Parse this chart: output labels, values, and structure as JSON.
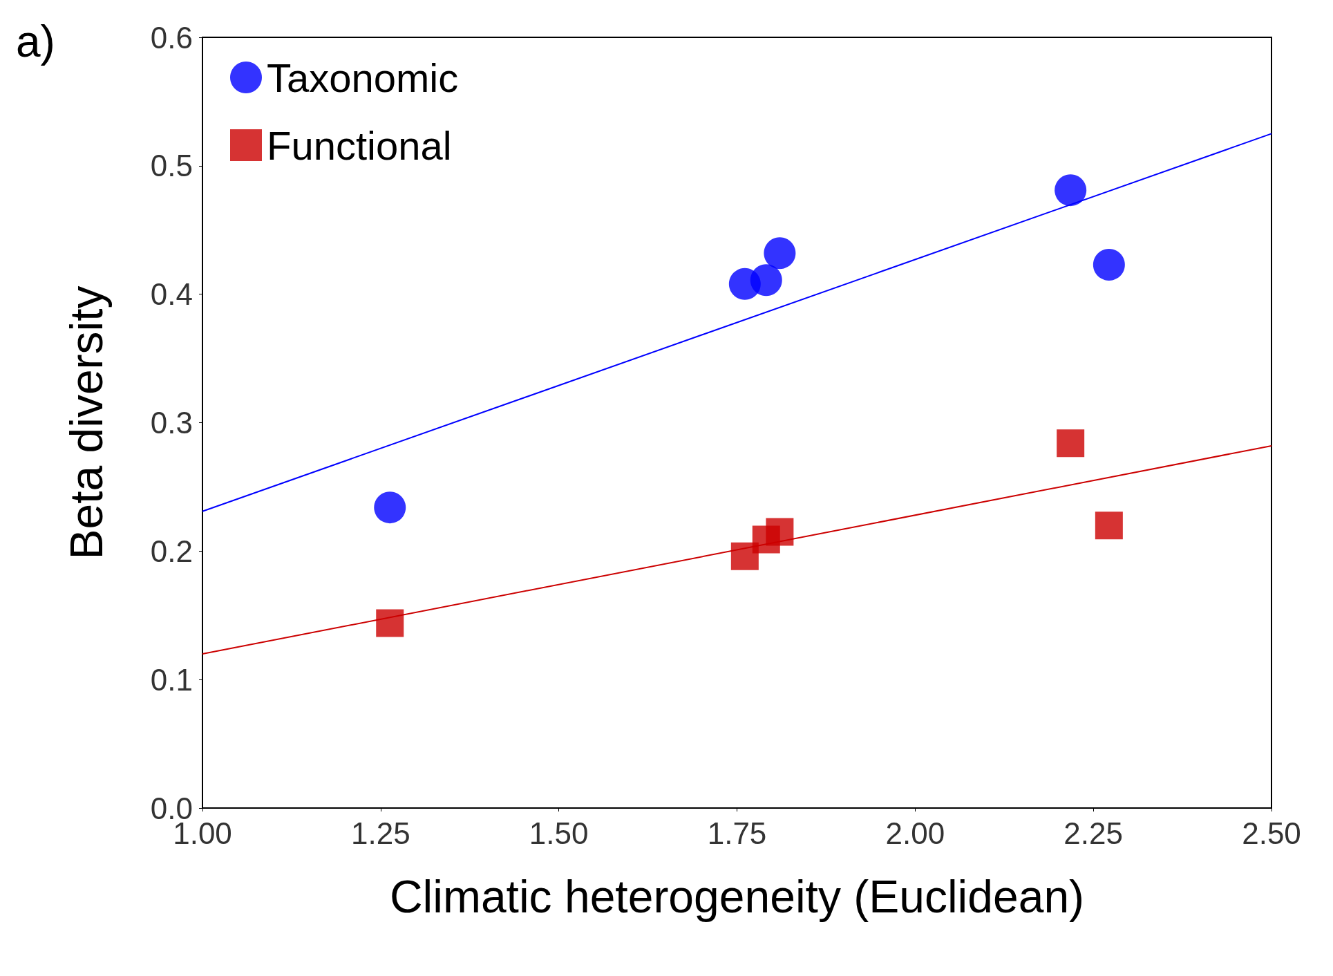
{
  "chart_data": {
    "type": "scatter",
    "xlabel": "Climatic heterogeneity (Euclidean)",
    "ylabel": "Beta diversity",
    "annotations": [
      "a)"
    ],
    "xlim": [
      1.0,
      2.5
    ],
    "xticks": [
      {
        "value": 1,
        "label": "1.00"
      },
      {
        "value": 1.25,
        "label": "1.25"
      },
      {
        "value": 1.5,
        "label": "1.50"
      },
      {
        "value": 1.75,
        "label": "1.75"
      },
      {
        "value": 2,
        "label": "2.00"
      },
      {
        "value": 2.25,
        "label": "2.25"
      },
      {
        "value": 2.5,
        "label": "2.50"
      }
    ],
    "ylim": [
      0,
      0.6
    ],
    "yticks": [
      {
        "value": 0,
        "label": "0.0"
      },
      {
        "value": 0.1,
        "label": "0.1"
      },
      {
        "value": 0.2,
        "label": "0.2"
      },
      {
        "value": 0.3,
        "label": "0.3"
      },
      {
        "value": 0.4,
        "label": "0.4"
      },
      {
        "value": 0.5,
        "label": "0.5"
      },
      {
        "value": 0.6,
        "label": "0.6"
      }
    ],
    "grid": false,
    "legend": "top left",
    "series": [
      {
        "name": "Taxonomic",
        "marker": "circle",
        "color": "#0000ff",
        "x": [
          1.263,
          1.761,
          1.791,
          1.81,
          2.218,
          2.272
        ],
        "values": [
          0.234,
          0.408,
          0.411,
          0.432,
          0.481,
          0.423
        ]
      },
      {
        "name": "Functional",
        "marker": "square",
        "color": "#cc0000",
        "x": [
          1.263,
          1.761,
          1.791,
          1.81,
          2.218,
          2.272
        ],
        "values": [
          0.144,
          0.196,
          0.209,
          0.215,
          0.284,
          0.22
        ]
      },
      {
        "type": "line",
        "line_style": "solid",
        "color": "#0000ff",
        "x": [
          1.0,
          2.5
        ],
        "values": [
          0.231,
          0.525
        ]
      },
      {
        "type": "line",
        "line_style": "solid",
        "color": "#cc0000",
        "x": [
          1.0,
          2.5
        ],
        "values": [
          0.12,
          0.282
        ]
      }
    ]
  }
}
